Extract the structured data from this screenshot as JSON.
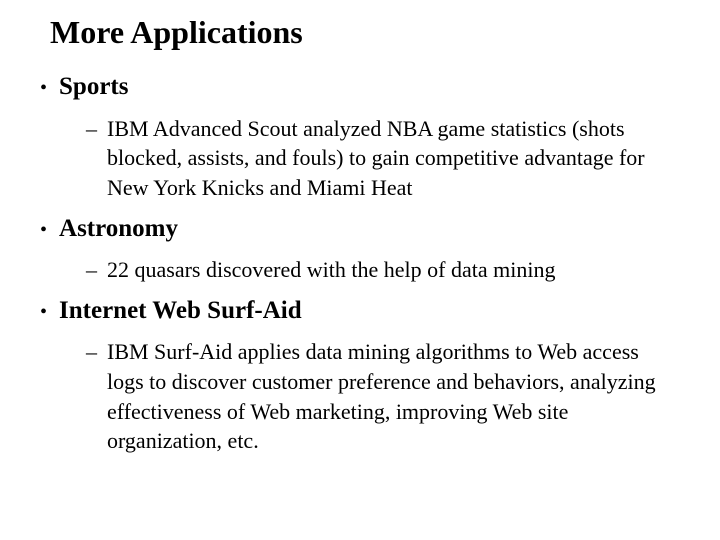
{
  "title": "More Applications",
  "sections": [
    {
      "heading": "Sports",
      "items": [
        "IBM Advanced Scout analyzed NBA game statistics (shots blocked, assists, and fouls) to gain competitive advantage for New York Knicks and Miami Heat"
      ]
    },
    {
      "heading": "Astronomy",
      "items": [
        "22 quasars discovered with the help of data mining"
      ]
    },
    {
      "heading": "Internet Web Surf-Aid",
      "items": [
        "IBM Surf-Aid applies data mining algorithms to Web access logs to discover customer preference and behaviors, analyzing effectiveness of Web marketing, improving Web site organization, etc."
      ]
    }
  ],
  "style": {
    "background_color": "#ffffff",
    "title_fontsize": 32,
    "title_color": "#000000",
    "level1_fontsize": 25,
    "level1_bullet": "•",
    "level2_fontsize": 22,
    "level2_bullet": "–",
    "font_family": "Times New Roman"
  }
}
